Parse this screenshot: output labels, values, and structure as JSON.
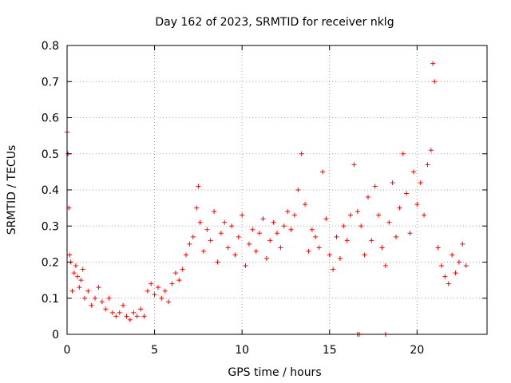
{
  "chart_data": {
    "type": "scatter",
    "title": "Day 162 of 2023, SRMTID for receiver nklg",
    "xlabel": "GPS time / hours",
    "ylabel": "SRMTID / TECUs",
    "xlim": [
      0,
      24
    ],
    "ylim": [
      0,
      0.8
    ],
    "xticks": [
      0,
      5,
      10,
      15,
      20
    ],
    "xtick_labels": [
      "0",
      "5",
      "10",
      "15",
      "20"
    ],
    "yticks": [
      0,
      0.1,
      0.2,
      0.3,
      0.4,
      0.5,
      0.6,
      0.7,
      0.8
    ],
    "ytick_labels": [
      "0",
      "0.1",
      "0.2",
      "0.3",
      "0.4",
      "0.5",
      "0.6",
      "0.7",
      "0.8"
    ],
    "grid": true,
    "marker": "+",
    "color": "#ff0000",
    "series": [
      {
        "name": "SRMTID",
        "x": [
          0.0,
          0.05,
          0.1,
          0.15,
          0.2,
          0.3,
          0.4,
          0.5,
          0.6,
          0.7,
          0.8,
          0.9,
          1.0,
          1.2,
          1.4,
          1.6,
          1.8,
          2.0,
          2.2,
          2.4,
          2.6,
          2.8,
          3.0,
          3.2,
          3.4,
          3.6,
          3.8,
          4.0,
          4.2,
          4.4,
          4.6,
          4.8,
          5.0,
          5.2,
          5.4,
          5.6,
          5.8,
          6.0,
          6.2,
          6.4,
          6.6,
          6.8,
          7.0,
          7.2,
          7.4,
          7.5,
          7.6,
          7.8,
          8.0,
          8.2,
          8.4,
          8.6,
          8.8,
          9.0,
          9.2,
          9.4,
          9.6,
          9.8,
          10.0,
          10.2,
          10.4,
          10.6,
          10.8,
          11.0,
          11.2,
          11.4,
          11.6,
          11.8,
          12.0,
          12.2,
          12.4,
          12.6,
          12.8,
          13.0,
          13.2,
          13.4,
          13.6,
          13.8,
          14.0,
          14.2,
          14.4,
          14.6,
          14.8,
          15.0,
          15.2,
          15.4,
          15.6,
          15.8,
          16.0,
          16.2,
          16.4,
          16.6,
          16.8,
          17.0,
          17.2,
          17.4,
          17.6,
          17.8,
          18.0,
          18.2,
          18.4,
          18.6,
          18.8,
          19.0,
          19.2,
          19.4,
          19.6,
          19.8,
          20.0,
          20.2,
          20.4,
          20.6,
          20.8,
          20.9,
          21.0,
          21.2,
          21.4,
          21.6,
          21.8,
          22.0,
          22.2,
          22.4,
          22.6,
          22.8
        ],
        "y": [
          0.56,
          0.5,
          0.35,
          0.22,
          0.2,
          0.12,
          0.17,
          0.19,
          0.16,
          0.13,
          0.15,
          0.18,
          0.1,
          0.12,
          0.08,
          0.1,
          0.13,
          0.09,
          0.07,
          0.1,
          0.06,
          0.05,
          0.06,
          0.08,
          0.05,
          0.04,
          0.06,
          0.05,
          0.07,
          0.05,
          0.12,
          0.14,
          0.11,
          0.13,
          0.1,
          0.12,
          0.09,
          0.14,
          0.17,
          0.15,
          0.18,
          0.22,
          0.25,
          0.27,
          0.35,
          0.41,
          0.31,
          0.23,
          0.29,
          0.26,
          0.34,
          0.2,
          0.28,
          0.31,
          0.24,
          0.3,
          0.22,
          0.27,
          0.33,
          0.19,
          0.25,
          0.29,
          0.23,
          0.28,
          0.32,
          0.21,
          0.26,
          0.31,
          0.28,
          0.24,
          0.3,
          0.34,
          0.29,
          0.33,
          0.4,
          0.5,
          0.36,
          0.23,
          0.29,
          0.27,
          0.24,
          0.45,
          0.32,
          0.22,
          0.18,
          0.27,
          0.21,
          0.3,
          0.26,
          0.33,
          0.47,
          0.34,
          0.3,
          0.22,
          0.38,
          0.26,
          0.41,
          0.33,
          0.24,
          0.19,
          0.31,
          0.42,
          0.27,
          0.35,
          0.5,
          0.39,
          0.28,
          0.45,
          0.36,
          0.42,
          0.33,
          0.47,
          0.51,
          0.75,
          0.7,
          0.24,
          0.19,
          0.16,
          0.14,
          0.22,
          0.17,
          0.2,
          0.25,
          0.19
        ]
      }
    ],
    "zero_markers_x": [
      16.6,
      16.7,
      18.2
    ]
  }
}
